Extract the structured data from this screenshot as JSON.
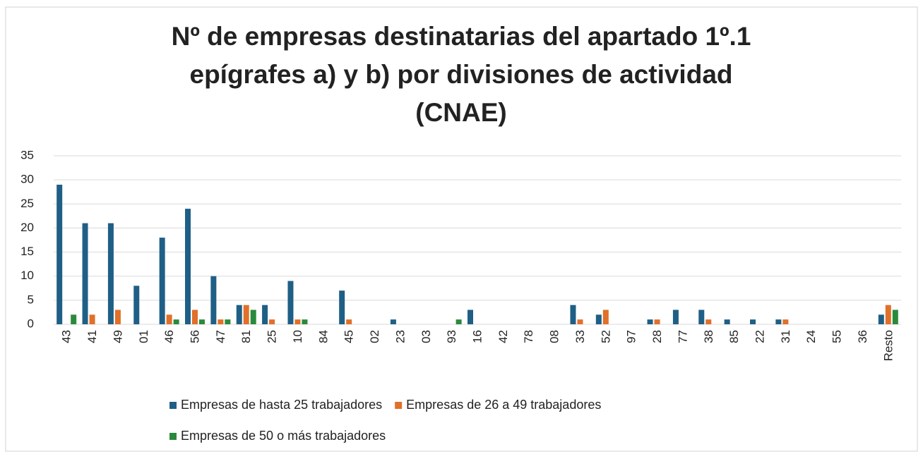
{
  "chart_data": {
    "type": "bar",
    "title": [
      "Nº de empresas destinatarias del apartado 1º.1",
      "epígrafes a) y b) por divisiones de actividad",
      "(CNAE)"
    ],
    "categories": [
      "43",
      "41",
      "49",
      "01",
      "46",
      "56",
      "47",
      "81",
      "25",
      "10",
      "84",
      "45",
      "02",
      "23",
      "03",
      "93",
      "16",
      "42",
      "78",
      "08",
      "33",
      "52",
      "97",
      "28",
      "77",
      "38",
      "85",
      "22",
      "31",
      "24",
      "55",
      "36",
      "Resto"
    ],
    "series": [
      {
        "name": "Empresas de hasta 25 trabajadores",
        "color": "#1f5f86",
        "values": [
          29,
          21,
          21,
          8,
          18,
          24,
          10,
          4,
          4,
          9,
          0,
          7,
          0,
          1,
          0,
          0,
          3,
          0,
          0,
          0,
          4,
          2,
          0,
          1,
          3,
          3,
          1,
          1,
          1,
          0,
          0,
          0,
          2
        ]
      },
      {
        "name": "Empresas de 26 a 49 trabajadores",
        "color": "#e0702a",
        "values": [
          0,
          2,
          3,
          0,
          2,
          3,
          1,
          4,
          1,
          1,
          0,
          1,
          0,
          0,
          0,
          0,
          0,
          0,
          0,
          0,
          1,
          3,
          0,
          1,
          0,
          1,
          0,
          0,
          1,
          0,
          0,
          0,
          4
        ]
      },
      {
        "name": "Empresas de 50 o más trabajadores",
        "color": "#2a8a3c",
        "values": [
          2,
          0,
          0,
          0,
          1,
          1,
          1,
          3,
          0,
          1,
          0,
          0,
          0,
          0,
          0,
          1,
          0,
          0,
          0,
          0,
          0,
          0,
          0,
          0,
          0,
          0,
          0,
          0,
          0,
          0,
          0,
          0,
          3
        ]
      }
    ],
    "ylim": [
      0,
      35
    ],
    "yticks": [
      0,
      5,
      10,
      15,
      20,
      25,
      30,
      35
    ],
    "grid": true,
    "legend": "bottom"
  }
}
